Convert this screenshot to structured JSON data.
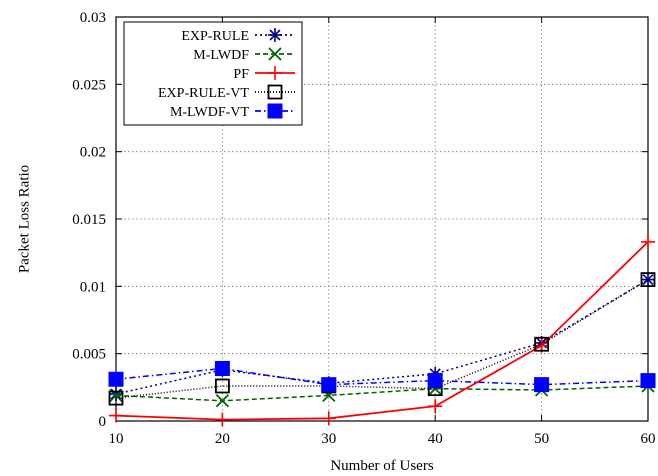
{
  "chart_data": {
    "type": "line",
    "title": "",
    "xlabel": "Number of Users",
    "ylabel": "Packet Loss Ratio",
    "x": [
      10,
      20,
      30,
      40,
      50,
      60
    ],
    "xlim": [
      10,
      60
    ],
    "ylim": [
      0,
      0.03
    ],
    "xticks": [
      "10",
      "20",
      "30",
      "40",
      "50",
      "60"
    ],
    "yticks": [
      "0",
      "0.005",
      "0.01",
      "0.015",
      "0.02",
      "0.025",
      "0.03"
    ],
    "grid": true,
    "legend_position": "top-left",
    "series": [
      {
        "name": "EXP-RULE",
        "values": [
          0.002,
          0.0038,
          0.0028,
          0.0035,
          0.0058,
          0.0105
        ],
        "color": "#00008b",
        "dash": "dotted",
        "marker": "asterisk"
      },
      {
        "name": "M-LWDF",
        "values": [
          0.0019,
          0.0015,
          0.0019,
          0.0024,
          0.0023,
          0.0026
        ],
        "color": "#006400",
        "dash": "dashed",
        "marker": "x"
      },
      {
        "name": "PF",
        "values": [
          0.0004,
          0.0001,
          0.0002,
          0.0011,
          0.0056,
          0.0133
        ],
        "color": "#ff0000",
        "dash": "solid",
        "marker": "plus"
      },
      {
        "name": "EXP-RULE-VT",
        "values": [
          0.0017,
          0.0026,
          0.0026,
          0.0024,
          0.0057,
          0.0105
        ],
        "color": "#000000",
        "dash": "fine-dotted",
        "marker": "open-square"
      },
      {
        "name": "M-LWDF-VT",
        "values": [
          0.0031,
          0.0039,
          0.0027,
          0.003,
          0.0027,
          0.003
        ],
        "color": "#0000ff",
        "dash": "dash-dot",
        "marker": "filled-square"
      }
    ]
  }
}
